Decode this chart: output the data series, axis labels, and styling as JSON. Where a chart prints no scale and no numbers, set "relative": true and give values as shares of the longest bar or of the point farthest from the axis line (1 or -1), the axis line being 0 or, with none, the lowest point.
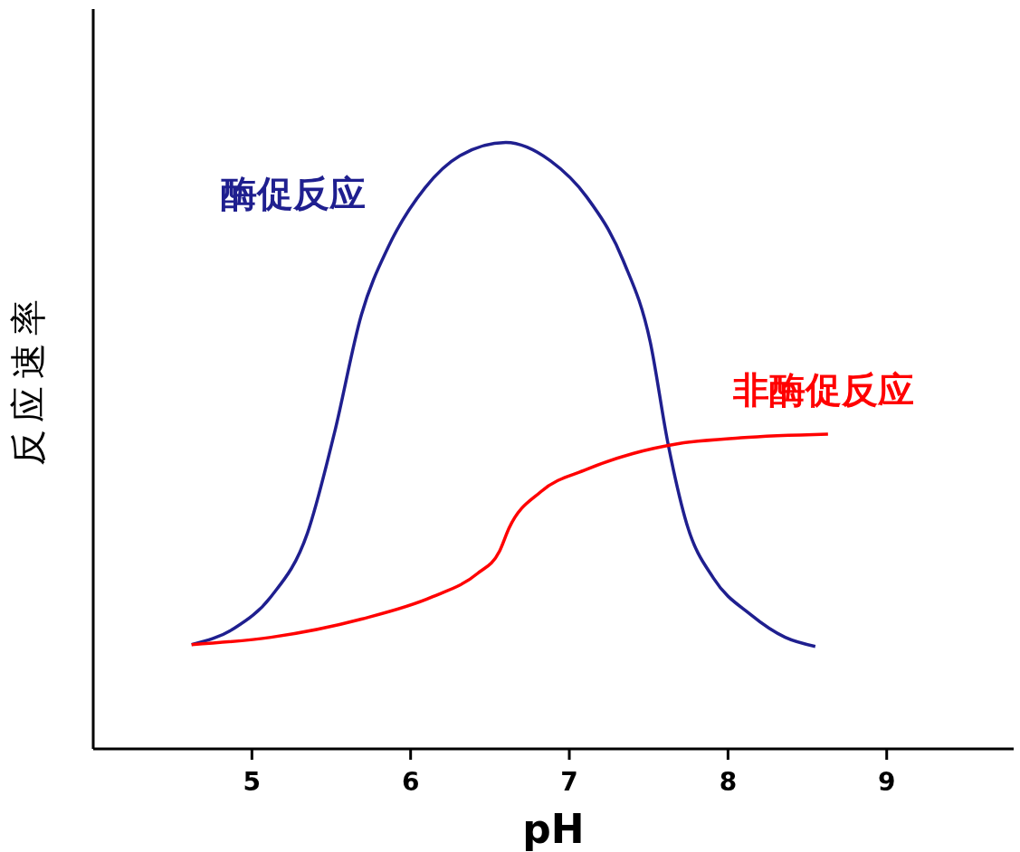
{
  "chart_data": {
    "type": "line",
    "relative": true,
    "xlabel": "pH",
    "ylabel": "反应速率",
    "xlim": [
      4,
      9.8
    ],
    "xticks": [
      5,
      6,
      7,
      8,
      9
    ],
    "grid": false,
    "legend": false,
    "marker": "none",
    "line_style": "solid",
    "series": [
      {
        "name": "酶促反应",
        "color": "#1f1f8f",
        "x": [
          4.62,
          4.89,
          5.12,
          5.35,
          5.52,
          5.69,
          5.86,
          6.09,
          6.31,
          6.6,
          6.88,
          7.11,
          7.34,
          7.51,
          7.62,
          7.74,
          7.91,
          8.14,
          8.36,
          8.55
        ],
        "values": [
          0.172,
          0.199,
          0.251,
          0.356,
          0.521,
          0.716,
          0.828,
          0.925,
          0.978,
          1,
          0.97,
          0.91,
          0.805,
          0.671,
          0.506,
          0.371,
          0.281,
          0.222,
          0.184,
          0.169
        ]
      },
      {
        "name": "非酶促反应",
        "color": "#ff0000",
        "x": [
          4.62,
          5.12,
          5.69,
          6.14,
          6.42,
          6.56,
          6.62,
          6.82,
          7.11,
          7.4,
          7.68,
          8.08,
          8.63
        ],
        "values": [
          0.172,
          0.184,
          0.214,
          0.251,
          0.289,
          0.326,
          0.364,
          0.424,
          0.461,
          0.487,
          0.503,
          0.513,
          0.519
        ]
      }
    ]
  }
}
